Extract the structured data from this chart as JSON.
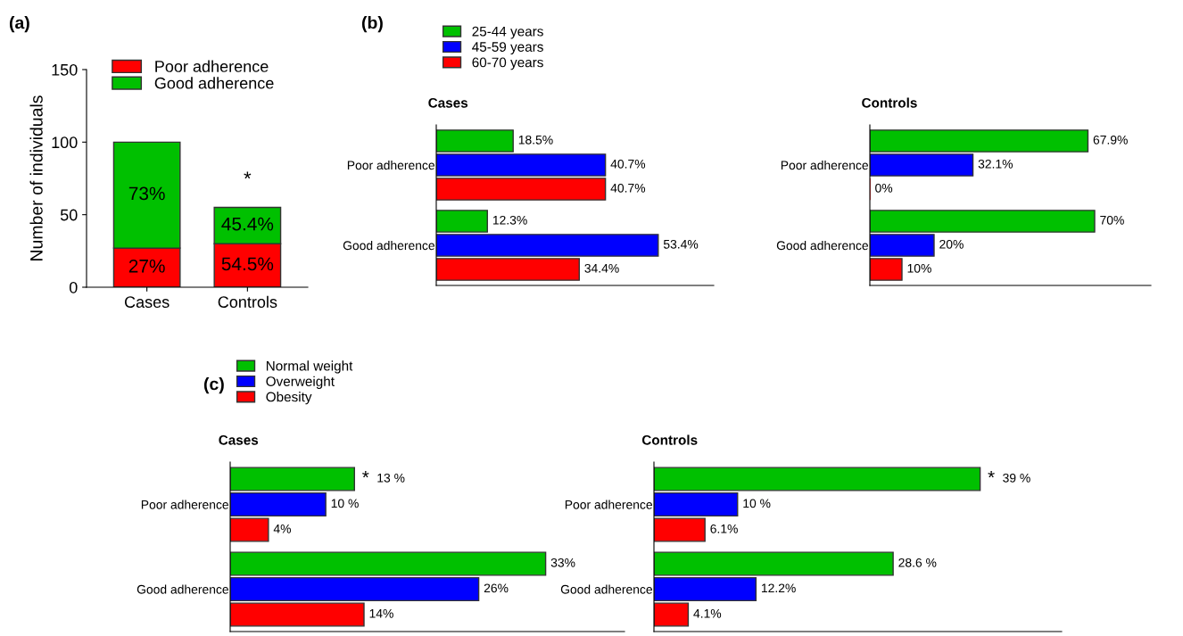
{
  "chart_data": [
    {
      "type": "bar",
      "stacked": true,
      "ylabel": "Number of individuals",
      "categories": [
        "Cases",
        "Controls"
      ],
      "ylim": [
        0,
        150
      ],
      "yticks": [
        0,
        50,
        100,
        150
      ],
      "grid": false,
      "legend": "top left",
      "series": [
        {
          "name": "Poor adherence",
          "color": "#ff0000",
          "values": [
            27,
            30
          ]
        },
        {
          "name": "Good adherence",
          "color": "#00c000",
          "values": [
            73,
            25
          ]
        }
      ],
      "annotations": [
        "(a)",
        "*",
        "27%",
        "54.5%",
        "73%",
        "45.4%"
      ]
    },
    {
      "type": "bar",
      "orientation": "horizontal",
      "title": "Cases",
      "categories": [
        "Poor adherence",
        "Good adherence"
      ],
      "legend": "top left",
      "series": [
        {
          "name": "25-44 years",
          "color": "#00c000",
          "values": [
            18.5,
            12.3
          ],
          "value_labels": [
            "18.5%",
            "12.3%"
          ]
        },
        {
          "name": "45-59 years",
          "color": "#0000ff",
          "values": [
            40.7,
            53.4
          ],
          "value_labels": [
            "40.7%",
            "53.4%"
          ]
        },
        {
          "name": "60-70 years",
          "color": "#ff0000",
          "values": [
            40.7,
            34.4
          ],
          "value_labels": [
            "40.7%",
            "34.4%"
          ]
        }
      ],
      "annotations": [
        "(b)"
      ]
    },
    {
      "type": "bar",
      "orientation": "horizontal",
      "title": "Controls",
      "categories": [
        "Poor adherence",
        "Good adherence"
      ],
      "series": [
        {
          "color": "#00c000",
          "values": [
            67.9,
            70
          ],
          "value_labels": [
            "67.9%",
            "70%"
          ]
        },
        {
          "color": "#0000ff",
          "values": [
            32.1,
            20
          ],
          "value_labels": [
            "32.1%",
            "20%"
          ]
        },
        {
          "color": "#ff0000",
          "values": [
            0,
            10
          ],
          "value_labels": [
            "0%",
            "10%"
          ]
        }
      ]
    },
    {
      "type": "bar",
      "orientation": "horizontal",
      "title": "Cases",
      "categories": [
        "Poor adherence",
        "Good adherence"
      ],
      "legend": "top left",
      "series": [
        {
          "name": "Normal weight",
          "color": "#00c000",
          "values": [
            13,
            33
          ],
          "value_labels": [
            "13 %",
            "33%"
          ]
        },
        {
          "name": "Overweight",
          "color": "#0000ff",
          "values": [
            10,
            26
          ],
          "value_labels": [
            "10 %",
            "26%"
          ]
        },
        {
          "name": "Obesity",
          "color": "#ff0000",
          "values": [
            4,
            14
          ],
          "value_labels": [
            "4%",
            "14%"
          ]
        }
      ],
      "annotations": [
        "(c)",
        "*"
      ]
    },
    {
      "type": "bar",
      "orientation": "horizontal",
      "title": "Controls",
      "categories": [
        "Poor adherence",
        "Good adherence"
      ],
      "series": [
        {
          "color": "#00c000",
          "values": [
            39,
            28.6
          ],
          "value_labels": [
            "39 %",
            "28.6 %"
          ]
        },
        {
          "color": "#0000ff",
          "values": [
            10,
            12.2
          ],
          "value_labels": [
            "10 %",
            "12.2%"
          ]
        },
        {
          "color": "#ff0000",
          "values": [
            6.1,
            4.1
          ],
          "value_labels": [
            "6.1%",
            "4.1%"
          ]
        }
      ],
      "annotations": [
        "*"
      ]
    }
  ]
}
